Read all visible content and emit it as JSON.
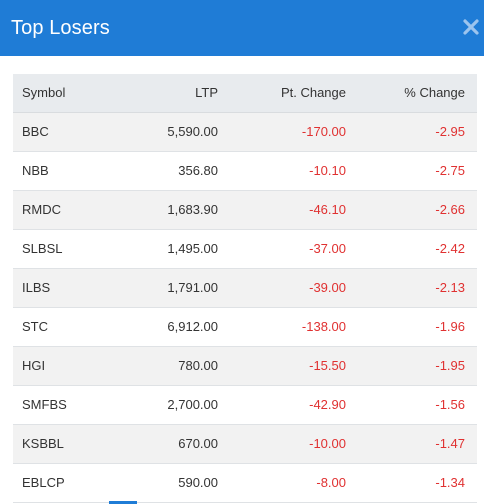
{
  "modal": {
    "title": "Top Losers",
    "close_icon": "close-icon"
  },
  "colors": {
    "header_bg": "#1f7cd6",
    "negative": "#e03131",
    "row_alt": "#f2f2f2",
    "table_header_bg": "#e8ebee"
  },
  "table": {
    "headers": {
      "symbol": "Symbol",
      "ltp": "LTP",
      "pt_change": "Pt. Change",
      "pct_change": "% Change"
    },
    "rows": [
      {
        "symbol": "BBC",
        "ltp": "5,590.00",
        "pt_change": "-170.00",
        "pct_change": "-2.95"
      },
      {
        "symbol": "NBB",
        "ltp": "356.80",
        "pt_change": "-10.10",
        "pct_change": "-2.75"
      },
      {
        "symbol": "RMDC",
        "ltp": "1,683.90",
        "pt_change": "-46.10",
        "pct_change": "-2.66"
      },
      {
        "symbol": "SLBSL",
        "ltp": "1,495.00",
        "pt_change": "-37.00",
        "pct_change": "-2.42"
      },
      {
        "symbol": "ILBS",
        "ltp": "1,791.00",
        "pt_change": "-39.00",
        "pct_change": "-2.13"
      },
      {
        "symbol": "STC",
        "ltp": "6,912.00",
        "pt_change": "-138.00",
        "pct_change": "-1.96"
      },
      {
        "symbol": "HGI",
        "ltp": "780.00",
        "pt_change": "-15.50",
        "pct_change": "-1.95"
      },
      {
        "symbol": "SMFBS",
        "ltp": "2,700.00",
        "pt_change": "-42.90",
        "pct_change": "-1.56"
      },
      {
        "symbol": "KSBBL",
        "ltp": "670.00",
        "pt_change": "-10.00",
        "pct_change": "-1.47"
      },
      {
        "symbol": "EBLCP",
        "ltp": "590.00",
        "pt_change": "-8.00",
        "pct_change": "-1.34"
      }
    ]
  }
}
